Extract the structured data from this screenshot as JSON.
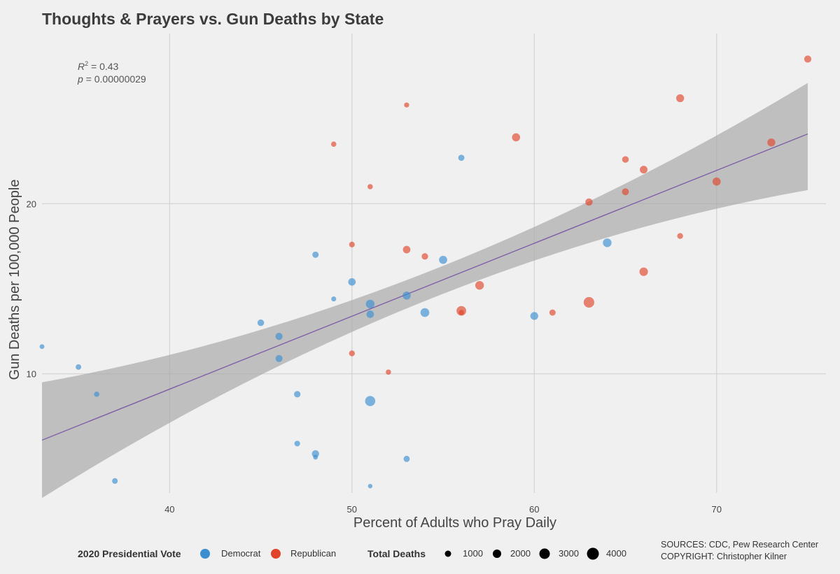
{
  "chart_data": {
    "type": "scatter",
    "title": "Thoughts & Prayers vs. Gun Deaths by State",
    "xlabel": "Percent of Adults who Pray Daily",
    "ylabel": "Gun Deaths per 100,000 People",
    "xlim": [
      33,
      76
    ],
    "ylim": [
      3,
      30
    ],
    "x_ticks": [
      40,
      50,
      60,
      70
    ],
    "y_ticks": [
      10,
      20
    ],
    "grid": true,
    "annotation": {
      "r2_label": "R",
      "r2_sup": "2",
      "r2_value": " = 0.43",
      "p_label": "p",
      "p_value": " = 0.00000029"
    },
    "trend_line": {
      "x": [
        33,
        75
      ],
      "y": [
        6.1,
        24.1
      ],
      "band_upper": [
        9.5,
        27.1
      ],
      "band_lower": [
        2.7,
        20.8
      ],
      "color": "#7b5aa6"
    },
    "colors": {
      "Democrat": "#3b8fd1",
      "Republican": "#e0442a"
    },
    "series": [
      {
        "name": "Democrat",
        "points": [
          {
            "x": 33,
            "y": 11.6,
            "deaths": 150
          },
          {
            "x": 35,
            "y": 10.4,
            "deaths": 300
          },
          {
            "x": 36,
            "y": 8.8,
            "deaths": 250
          },
          {
            "x": 37,
            "y": 3.7,
            "deaths": 350
          },
          {
            "x": 45,
            "y": 13.0,
            "deaths": 650
          },
          {
            "x": 46,
            "y": 12.2,
            "deaths": 850
          },
          {
            "x": 46,
            "y": 10.9,
            "deaths": 800
          },
          {
            "x": 47,
            "y": 8.8,
            "deaths": 600
          },
          {
            "x": 47,
            "y": 5.9,
            "deaths": 350
          },
          {
            "x": 48,
            "y": 17.0,
            "deaths": 550
          },
          {
            "x": 48,
            "y": 5.3,
            "deaths": 900
          },
          {
            "x": 48,
            "y": 5.1,
            "deaths": 150
          },
          {
            "x": 49,
            "y": 14.4,
            "deaths": 180
          },
          {
            "x": 50,
            "y": 15.4,
            "deaths": 1000
          },
          {
            "x": 51,
            "y": 14.1,
            "deaths": 1600
          },
          {
            "x": 51,
            "y": 13.5,
            "deaths": 1000
          },
          {
            "x": 51,
            "y": 8.4,
            "deaths": 2600
          },
          {
            "x": 51,
            "y": 3.4,
            "deaths": 100
          },
          {
            "x": 53,
            "y": 14.6,
            "deaths": 1300
          },
          {
            "x": 53,
            "y": 5.0,
            "deaths": 500
          },
          {
            "x": 54,
            "y": 13.6,
            "deaths": 1700
          },
          {
            "x": 55,
            "y": 16.7,
            "deaths": 1300
          },
          {
            "x": 56,
            "y": 22.7,
            "deaths": 500
          },
          {
            "x": 60,
            "y": 13.4,
            "deaths": 1200
          },
          {
            "x": 64,
            "y": 17.7,
            "deaths": 1600
          }
        ]
      },
      {
        "name": "Republican",
        "points": [
          {
            "x": 49,
            "y": 23.5,
            "deaths": 250
          },
          {
            "x": 50,
            "y": 17.6,
            "deaths": 350
          },
          {
            "x": 50,
            "y": 11.2,
            "deaths": 400
          },
          {
            "x": 51,
            "y": 21.0,
            "deaths": 250
          },
          {
            "x": 52,
            "y": 10.1,
            "deaths": 250
          },
          {
            "x": 53,
            "y": 25.8,
            "deaths": 200
          },
          {
            "x": 53,
            "y": 17.3,
            "deaths": 1000
          },
          {
            "x": 54,
            "y": 16.9,
            "deaths": 600
          },
          {
            "x": 56,
            "y": 13.7,
            "deaths": 2200
          },
          {
            "x": 56,
            "y": 13.6,
            "deaths": 250
          },
          {
            "x": 57,
            "y": 15.2,
            "deaths": 1600
          },
          {
            "x": 59,
            "y": 23.9,
            "deaths": 1300
          },
          {
            "x": 61,
            "y": 13.6,
            "deaths": 500
          },
          {
            "x": 63,
            "y": 20.1,
            "deaths": 900
          },
          {
            "x": 63,
            "y": 14.2,
            "deaths": 2900
          },
          {
            "x": 65,
            "y": 22.6,
            "deaths": 650
          },
          {
            "x": 65,
            "y": 20.7,
            "deaths": 750
          },
          {
            "x": 66,
            "y": 22.0,
            "deaths": 1100
          },
          {
            "x": 66,
            "y": 16.0,
            "deaths": 1500
          },
          {
            "x": 68,
            "y": 26.2,
            "deaths": 1200
          },
          {
            "x": 68,
            "y": 18.1,
            "deaths": 400
          },
          {
            "x": 70,
            "y": 21.3,
            "deaths": 1300
          },
          {
            "x": 73,
            "y": 23.6,
            "deaths": 1200
          },
          {
            "x": 75,
            "y": 28.5,
            "deaths": 850
          }
        ]
      }
    ],
    "legend": {
      "placement": "bottom",
      "vote_title": "2020 Presidential Vote",
      "vote_items": [
        "Democrat",
        "Republican"
      ],
      "size_title": "Total Deaths",
      "size_items": [
        1000,
        2000,
        3000,
        4000
      ]
    }
  },
  "sources": {
    "line1": "SOURCES: CDC, Pew Research Center",
    "line2": "COPYRIGHT: Christopher Kilner"
  }
}
